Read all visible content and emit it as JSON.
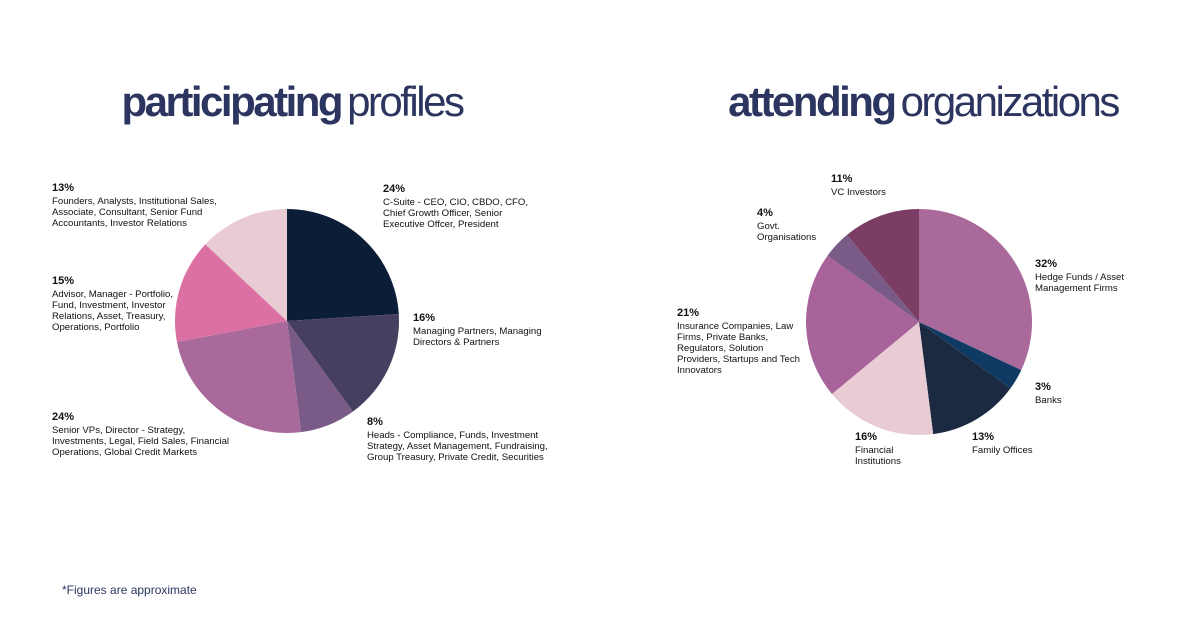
{
  "chart_data": [
    {
      "type": "pie",
      "title": [
        "participating",
        "profiles"
      ],
      "categories": [
        "C-Suite - CEO, CIO, CBDO, CFO, Chief Growth Officer, Senior Executive Offcer, President",
        "Managing Partners, Managing Directors & Partners",
        "Heads - Compliance, Funds, Investment Strategy, Asset Management, Fundraising, Group Treasury, Private Credit, Securities",
        "Senior VPs, Director - Strategy, Investments, Legal, Field Sales, Financial Operations, Global Credit Markets",
        "Advisor, Manager - Portfolio, Fund, Investment, Investor Relations, Asset, Treasury, Operations, Portfolio",
        "Founders, Analysts, Institutional Sales, Associate, Consultant, Senior Fund Accountants, Investor Relations"
      ],
      "values": [
        24,
        16,
        8,
        24,
        15,
        13
      ],
      "value_labels": [
        "24%",
        "16%",
        "8%",
        "24%",
        "15%",
        "13%"
      ],
      "colors": [
        "#0c1e37",
        "#463f5f",
        "#7a5b87",
        "#a96a9b",
        "#dc70a3",
        "#e8cbd3"
      ]
    },
    {
      "type": "pie",
      "title": [
        "attending",
        "organizations"
      ],
      "categories": [
        "Hedge Funds / Asset Management Firms",
        "Banks",
        "Family Offices",
        "Financial Institutions",
        "Insurance Companies, Law Firms, Private Banks, Regulators, Solution Providers, Startups and Tech Innovators",
        "Govt. Organisations",
        "VC Investors"
      ],
      "values": [
        32,
        3,
        13,
        16,
        21,
        4,
        11
      ],
      "value_labels": [
        "32%",
        "3%",
        "13%",
        "16%",
        "21%",
        "4%",
        "11%"
      ],
      "colors": [
        "#a96a9b",
        "#0f3a63",
        "#1b2a40",
        "#e8cbd3",
        "#a8639b",
        "#7a5b87",
        "#7b3d64"
      ]
    }
  ],
  "footnote": "*Figures are approximate"
}
